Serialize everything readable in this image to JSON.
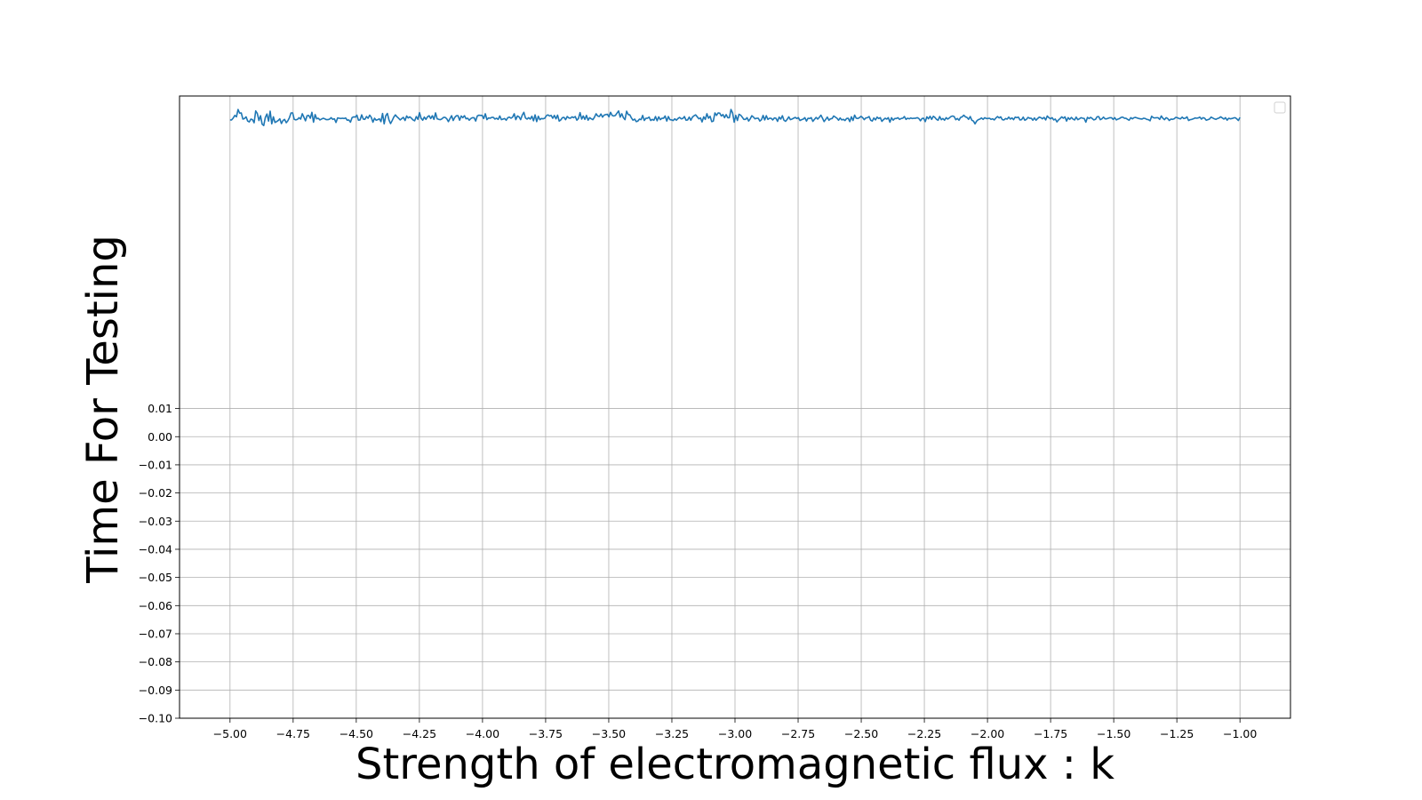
{
  "chart_data": {
    "type": "line",
    "title": "",
    "xlabel": "Strength of electromagnetic flux : k",
    "ylabel": "Time For Testing",
    "xlim": [
      -5.2,
      -0.8
    ],
    "x_ticks": [
      "−5.00",
      "−4.75",
      "−4.50",
      "−4.25",
      "−4.00",
      "−3.75",
      "−3.50",
      "−3.25",
      "−3.00",
      "−2.75",
      "−2.50",
      "−2.25",
      "−2.00",
      "−1.75",
      "−1.50",
      "−1.25",
      "−1.00"
    ],
    "x_tick_values": [
      -5.0,
      -4.75,
      -4.5,
      -4.25,
      -4.0,
      -3.75,
      -3.5,
      -3.25,
      -3.0,
      -2.75,
      -2.5,
      -2.25,
      -2.0,
      -1.75,
      -1.5,
      -1.25,
      -1.0
    ],
    "y_ticks": [
      "0.01",
      "0.00",
      "−0.01",
      "−0.02",
      "−0.03",
      "−0.04",
      "−0.05",
      "−0.06",
      "−0.07",
      "−0.08",
      "−0.09",
      "−0.10"
    ],
    "y_tick_values": [
      0.01,
      0.0,
      -0.01,
      -0.02,
      -0.03,
      -0.04,
      -0.05,
      -0.06,
      -0.07,
      -0.08,
      -0.09,
      -0.1
    ],
    "ylim": [
      -0.1,
      0.121
    ],
    "grid": true,
    "legend": "top-right (empty)",
    "series": [
      {
        "color": "#1f77b4",
        "x_start": -5.0,
        "x_end": -1.0,
        "values": [
          0.1125,
          0.1125,
          0.1132,
          0.1141,
          0.1136,
          0.1162,
          0.1149,
          0.115,
          0.1128,
          0.113,
          0.1136,
          0.1121,
          0.1118,
          0.1128,
          0.1126,
          0.1115,
          0.1157,
          0.1148,
          0.1123,
          0.114,
          0.111,
          0.1105,
          0.1134,
          0.1146,
          0.1121,
          0.1156,
          0.1111,
          0.1136,
          0.1116,
          0.1119,
          0.1123,
          0.1129,
          0.1112,
          0.1123,
          0.1127,
          0.1115,
          0.1122,
          0.1133,
          0.115,
          0.115,
          0.1127,
          0.1125,
          0.1127,
          0.1133,
          0.1128,
          0.1147,
          0.1135,
          0.1122,
          0.114,
          0.1141,
          0.1131,
          0.1152,
          0.1117,
          0.1144,
          0.1129,
          0.1131,
          0.1125,
          0.1128,
          0.1131,
          0.1129,
          0.1126,
          0.1126,
          0.1128,
          0.1133,
          0.1127,
          0.1129,
          0.1116,
          0.1132,
          0.1131,
          0.113,
          0.1131,
          0.113,
          0.1132,
          0.1124,
          0.1125,
          0.1117,
          0.1133,
          0.1136,
          0.1135,
          0.1142,
          0.1124,
          0.1125,
          0.1143,
          0.1128,
          0.1127,
          0.1137,
          0.1131,
          0.1142,
          0.1134,
          0.1117,
          0.1131,
          0.1124,
          0.1126,
          0.1129,
          0.1119,
          0.1148,
          0.1111,
          0.114,
          0.1148,
          0.1125,
          0.1112,
          0.1123,
          0.1135,
          0.1143,
          0.1136,
          0.1131,
          0.1125,
          0.113,
          0.1134,
          0.1123,
          0.1139,
          0.1132,
          0.1136,
          0.1131,
          0.1125,
          0.1122,
          0.1137,
          0.1127,
          0.1151,
          0.1131,
          0.1124,
          0.1135,
          0.1127,
          0.1136,
          0.114,
          0.113,
          0.114,
          0.1127,
          0.115,
          0.1129,
          0.1127,
          0.1126,
          0.1129,
          0.1134,
          0.1134,
          0.1129,
          0.1119,
          0.113,
          0.114,
          0.1123,
          0.1134,
          0.114,
          0.114,
          0.1124,
          0.1139,
          0.1133,
          0.114,
          0.1129,
          0.1131,
          0.1124,
          0.113,
          0.1133,
          0.1133,
          0.1121,
          0.1139,
          0.1142,
          0.1141,
          0.1141,
          0.113,
          0.1147,
          0.1126,
          0.1132,
          0.1131,
          0.1134,
          0.1134,
          0.1128,
          0.1131,
          0.1127,
          0.1139,
          0.1126,
          0.1128,
          0.113,
          0.1124,
          0.1133,
          0.1135,
          0.1131,
          0.1135,
          0.1147,
          0.1126,
          0.1139,
          0.1136,
          0.1126,
          0.1142,
          0.1152,
          0.1132,
          0.1128,
          0.1133,
          0.1128,
          0.1138,
          0.1122,
          0.1143,
          0.1119,
          0.1138,
          0.1126,
          0.113,
          0.1129,
          0.1131,
          0.114,
          0.1143,
          0.1139,
          0.1141,
          0.1131,
          0.1141,
          0.1129,
          0.1142,
          0.1121,
          0.1125,
          0.1133,
          0.1134,
          0.1126,
          0.1137,
          0.1132,
          0.1131,
          0.1136,
          0.1133,
          0.1137,
          0.1124,
          0.113,
          0.1151,
          0.1128,
          0.1139,
          0.1127,
          0.1141,
          0.1124,
          0.1133,
          0.1129,
          0.1126,
          0.1135,
          0.1147,
          0.1139,
          0.1137,
          0.1146,
          0.1135,
          0.1142,
          0.1144,
          0.1145,
          0.1136,
          0.1152,
          0.1141,
          0.1139,
          0.1141,
          0.1149,
          0.1157,
          0.1135,
          0.1147,
          0.1133,
          0.1126,
          0.1156,
          0.1144,
          0.1143,
          0.1132,
          0.1124,
          0.1128,
          0.1119,
          0.1121,
          0.1128,
          0.1126,
          0.1141,
          0.1123,
          0.1131,
          0.1131,
          0.1135,
          0.1123,
          0.1127,
          0.1124,
          0.1137,
          0.1122,
          0.1136,
          0.1126,
          0.1131,
          0.1131,
          0.1139,
          0.1121,
          0.1137,
          0.1126,
          0.1125,
          0.1123,
          0.1129,
          0.1124,
          0.113,
          0.1134,
          0.1129,
          0.113,
          0.1137,
          0.1124,
          0.1125,
          0.1135,
          0.1124,
          0.1135,
          0.114,
          0.1143,
          0.1136,
          0.1129,
          0.1132,
          0.1118,
          0.1136,
          0.1127,
          0.1147,
          0.1131,
          0.1138,
          0.1119,
          0.1121,
          0.115,
          0.1141,
          0.115,
          0.1149,
          0.1139,
          0.1144,
          0.1133,
          0.1144,
          0.1133,
          0.1133,
          0.1162,
          0.115,
          0.1117,
          0.1141,
          0.1123,
          0.1145,
          0.1142,
          0.1135,
          0.1127,
          0.1127,
          0.1133,
          0.1121,
          0.1129,
          0.114,
          0.1135,
          0.1129,
          0.1131,
          0.1131,
          0.1121,
          0.1126,
          0.1141,
          0.1125,
          0.114,
          0.1127,
          0.1131,
          0.1131,
          0.1125,
          0.1132,
          0.1131,
          0.112,
          0.1135,
          0.1128,
          0.114,
          0.1124,
          0.112,
          0.1127,
          0.1136,
          0.1126,
          0.1128,
          0.1131,
          0.1134,
          0.113,
          0.1133,
          0.1123,
          0.1126,
          0.1128,
          0.1133,
          0.1121,
          0.1131,
          0.113,
          0.1133,
          0.112,
          0.1127,
          0.1134,
          0.1128,
          0.1134,
          0.1142,
          0.1131,
          0.1119,
          0.1127,
          0.1135,
          0.1124,
          0.1129,
          0.113,
          0.1139,
          0.1135,
          0.1131,
          0.1124,
          0.1132,
          0.1125,
          0.1127,
          0.1123,
          0.113,
          0.1131,
          0.1119,
          0.1136,
          0.1123,
          0.1142,
          0.1131,
          0.113,
          0.1133,
          0.1138,
          0.1133,
          0.1126,
          0.1132,
          0.1133,
          0.1137,
          0.1124,
          0.1121,
          0.1132,
          0.1125,
          0.1135,
          0.113,
          0.1133,
          0.112,
          0.1126,
          0.1131,
          0.1128,
          0.1133,
          0.1117,
          0.1133,
          0.1124,
          0.113,
          0.113,
          0.1133,
          0.1127,
          0.113,
          0.1131,
          0.1137,
          0.1127,
          0.1131,
          0.1129,
          0.1132,
          0.113,
          0.1131,
          0.1131,
          0.1133,
          0.113,
          0.1122,
          0.113,
          0.1131,
          0.1119,
          0.1136,
          0.1129,
          0.1138,
          0.1127,
          0.1138,
          0.1134,
          0.1127,
          0.1124,
          0.1137,
          0.1126,
          0.113,
          0.1124,
          0.1133,
          0.1128,
          0.1132,
          0.1137,
          0.1139,
          0.1137,
          0.1126,
          0.113,
          0.1124,
          0.1134,
          0.1136,
          0.1142,
          0.1136,
          0.1134,
          0.1127,
          0.1137,
          0.1124,
          0.1121,
          0.1111,
          0.1121,
          0.1126,
          0.1128,
          0.1132,
          0.1127,
          0.1133,
          0.113,
          0.113,
          0.1131,
          0.1127,
          0.1129,
          0.1125,
          0.1132,
          0.1137,
          0.1132,
          0.1136,
          0.1126,
          0.1125,
          0.113,
          0.1128,
          0.1135,
          0.1128,
          0.1132,
          0.1126,
          0.1135,
          0.1133,
          0.1135,
          0.1125,
          0.1126,
          0.1135,
          0.1124,
          0.1127,
          0.1134,
          0.1131,
          0.1131,
          0.1124,
          0.1132,
          0.1124,
          0.113,
          0.1135,
          0.1133,
          0.1129,
          0.1134,
          0.1125,
          0.1139,
          0.1133,
          0.1129,
          0.1133,
          0.1125,
          0.1128,
          0.1118,
          0.1125,
          0.113,
          0.1136,
          0.1131,
          0.1136,
          0.1121,
          0.1133,
          0.1127,
          0.1134,
          0.1128,
          0.1125,
          0.1135,
          0.1126,
          0.1129,
          0.1133,
          0.1131,
          0.113,
          0.1117,
          0.1134,
          0.113,
          0.1134,
          0.113,
          0.1125,
          0.1127,
          0.1136,
          0.1137,
          0.1126,
          0.1129,
          0.1135,
          0.1129,
          0.1129,
          0.1131,
          0.1133,
          0.1133,
          0.1127,
          0.1133,
          0.1125,
          0.1128,
          0.113,
          0.1134,
          0.1135,
          0.1131,
          0.1131,
          0.1127,
          0.1124,
          0.1133,
          0.1129,
          0.1133,
          0.1134,
          0.1132,
          0.113,
          0.1129,
          0.1128,
          0.1131,
          0.113,
          0.1127,
          0.1126,
          0.1122,
          0.1138,
          0.1133,
          0.1132,
          0.1133,
          0.1133,
          0.1127,
          0.1139,
          0.1131,
          0.1126,
          0.1133,
          0.113,
          0.1123,
          0.1128,
          0.1127,
          0.1129,
          0.1134,
          0.1133,
          0.113,
          0.1129,
          0.1135,
          0.113,
          0.1131,
          0.1136,
          0.1123,
          0.1126,
          0.1127,
          0.1129,
          0.1132,
          0.1131,
          0.1132,
          0.1135,
          0.1128,
          0.1133,
          0.1131,
          0.1124,
          0.1126,
          0.1128,
          0.1135,
          0.1132,
          0.1129,
          0.1127,
          0.113,
          0.1132,
          0.1136,
          0.1132,
          0.1128,
          0.1133,
          0.1124,
          0.1131,
          0.1129,
          0.113,
          0.1132,
          0.1133,
          0.1129,
          0.1123,
          0.1134
        ]
      }
    ]
  }
}
